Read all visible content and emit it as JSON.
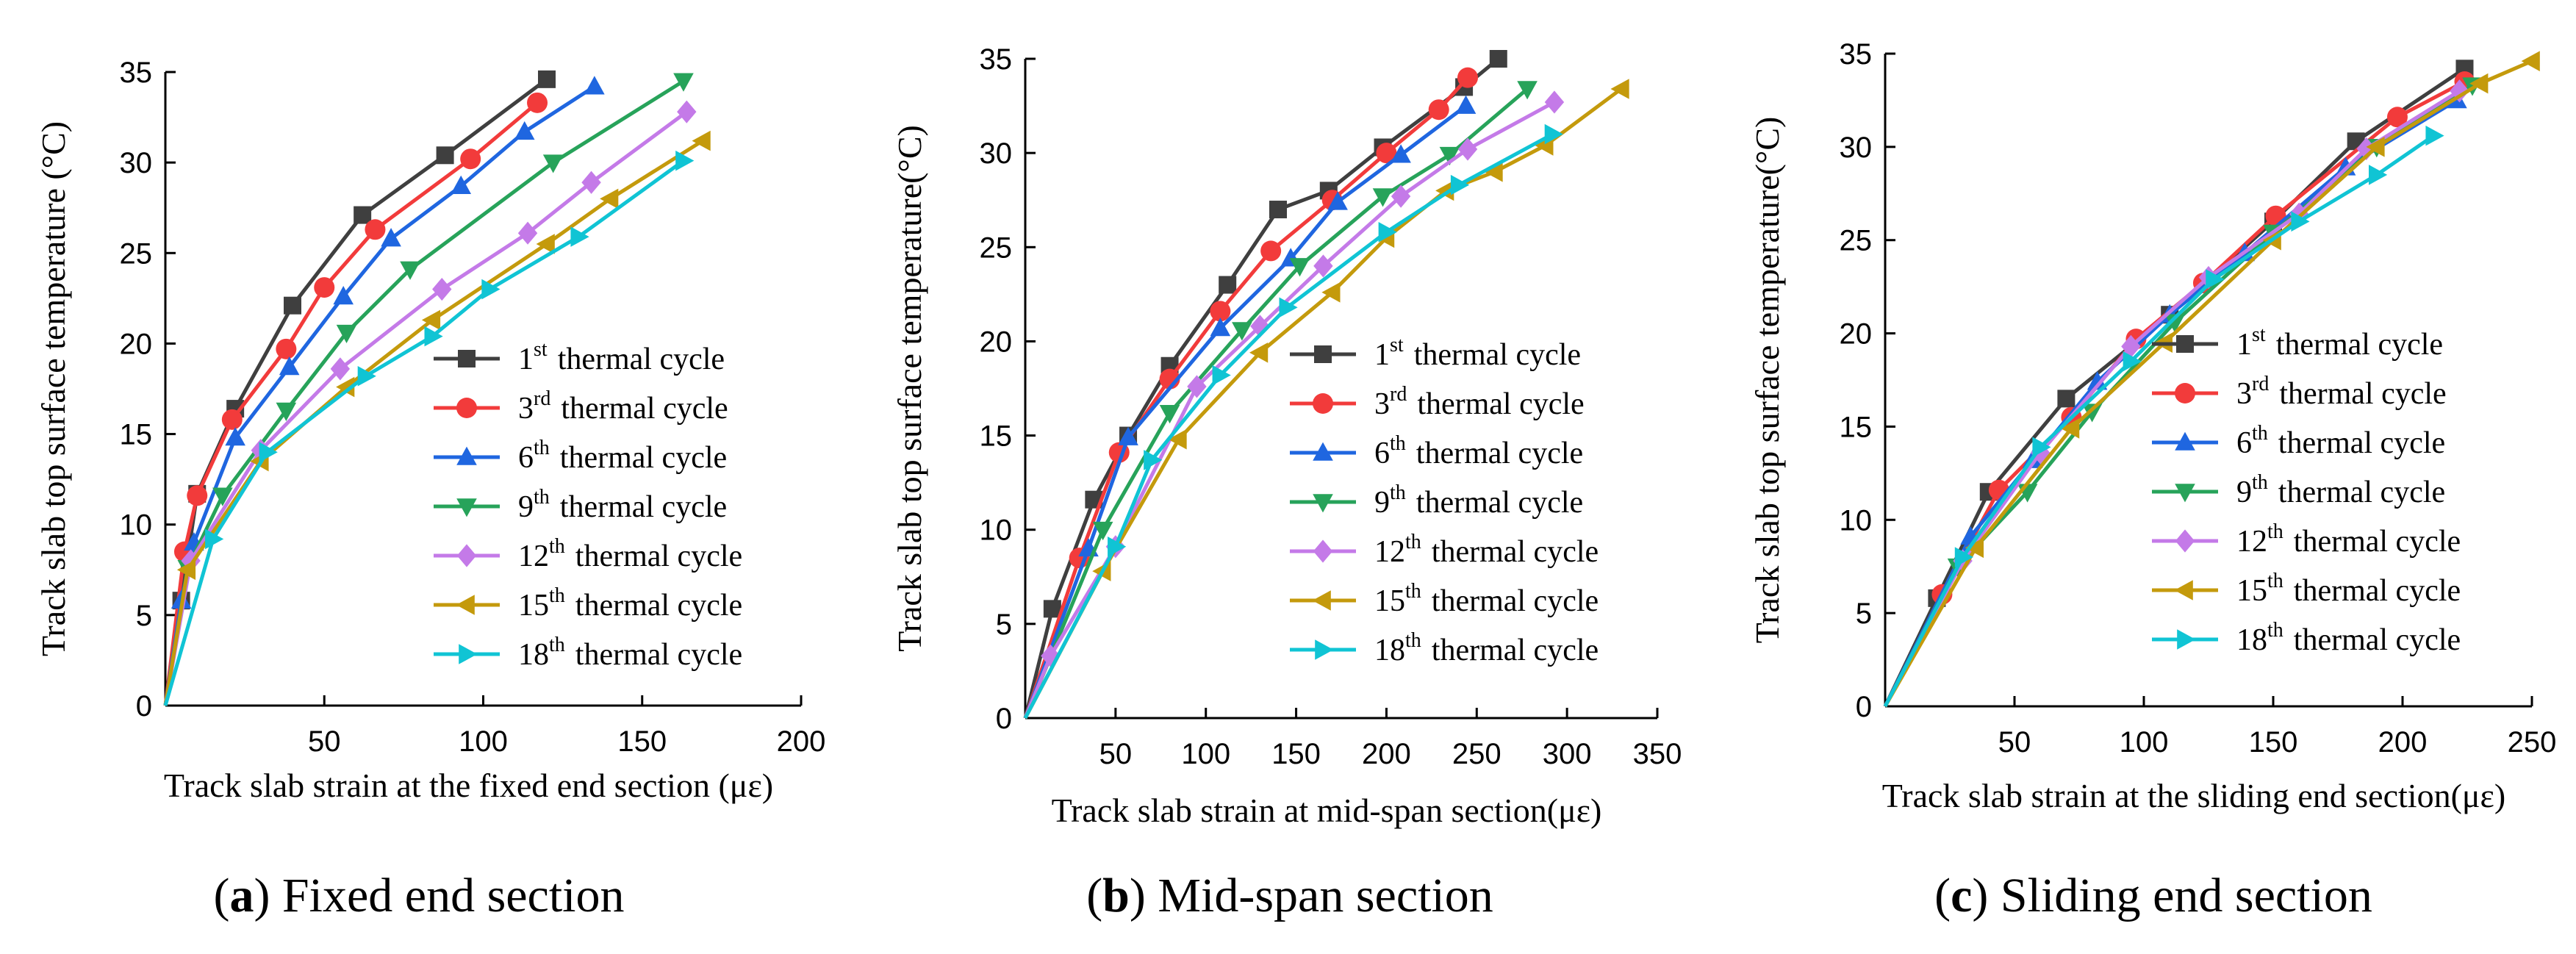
{
  "chart_data": [
    {
      "type": "line",
      "panel_letter": "a",
      "caption": "Fixed end section",
      "xlabel": "Track slab strain at the fixed end section (με)",
      "ylabel": "Track slab top surface temperature (°C)",
      "xlim": [
        0,
        200
      ],
      "ylim": [
        0,
        35
      ],
      "xticks": [
        50,
        100,
        150,
        200
      ],
      "yticks": [
        0,
        5,
        10,
        15,
        20,
        25,
        30,
        35
      ],
      "legend_position": "center-right",
      "series": [
        {
          "name": "1st thermal cycle",
          "x": [
            0,
            5,
            10,
            22,
            40,
            62,
            88,
            120
          ],
          "y": [
            0,
            5.8,
            11.7,
            16.4,
            22.1,
            27.1,
            30.4,
            34.6
          ]
        },
        {
          "name": "3rd thermal cycle",
          "x": [
            0,
            6,
            10,
            21,
            38,
            50,
            66,
            96,
            117
          ],
          "y": [
            0,
            8.5,
            11.6,
            15.8,
            19.7,
            23.1,
            26.3,
            30.2,
            33.3
          ]
        },
        {
          "name": "6th thermal cycle",
          "x": [
            0,
            5,
            9,
            22,
            39,
            56,
            71,
            93,
            113,
            135
          ],
          "y": [
            0,
            5.8,
            9.0,
            14.8,
            18.7,
            22.6,
            25.8,
            28.7,
            31.7,
            34.2
          ]
        },
        {
          "name": "9th thermal cycle",
          "x": [
            0,
            7,
            18,
            38,
            57,
            77,
            122,
            163
          ],
          "y": [
            0,
            7.6,
            11.6,
            16.3,
            20.6,
            24.1,
            30.0,
            34.5
          ]
        },
        {
          "name": "12th thermal cycle",
          "x": [
            0,
            8,
            30,
            55,
            87,
            114,
            134,
            164
          ],
          "y": [
            0,
            8.0,
            14.1,
            18.6,
            23.0,
            26.1,
            28.9,
            32.8
          ]
        },
        {
          "name": "15th thermal cycle",
          "x": [
            0,
            7,
            30,
            57,
            84,
            120,
            140,
            169
          ],
          "y": [
            0,
            7.5,
            13.5,
            17.6,
            21.3,
            25.5,
            28.0,
            31.2
          ]
        },
        {
          "name": "18th thermal cycle",
          "x": [
            0,
            15,
            32,
            63,
            84,
            102,
            130,
            163
          ],
          "y": [
            0,
            9.2,
            14.0,
            18.2,
            20.4,
            23.0,
            25.9,
            30.1
          ]
        }
      ]
    },
    {
      "type": "line",
      "panel_letter": "b",
      "caption": "Mid-span section",
      "xlabel": "Track slab strain at mid-span section(με)",
      "ylabel": "Track slab top surface temperature(°C)",
      "xlim": [
        0,
        350
      ],
      "ylim": [
        0,
        35
      ],
      "xticks": [
        50,
        100,
        150,
        200,
        250,
        300,
        350
      ],
      "yticks": [
        0,
        5,
        10,
        15,
        20,
        25,
        30,
        35
      ],
      "legend_position": "center-right",
      "series": [
        {
          "name": "1st thermal cycle",
          "x": [
            0,
            15,
            38,
            57,
            80,
            112,
            140,
            168,
            198,
            243,
            262
          ],
          "y": [
            0,
            5.8,
            11.6,
            15.0,
            18.7,
            23.0,
            27.0,
            28.0,
            30.3,
            33.5,
            35
          ]
        },
        {
          "name": "3rd thermal cycle",
          "x": [
            0,
            30,
            52,
            80,
            108,
            136,
            170,
            200,
            229,
            245
          ],
          "y": [
            0,
            8.5,
            14.1,
            18.0,
            21.6,
            24.8,
            27.5,
            30.0,
            32.3,
            34
          ]
        },
        {
          "name": "6th thermal cycle",
          "x": [
            0,
            35,
            57,
            108,
            147,
            173,
            208,
            244
          ],
          "y": [
            0,
            9.0,
            14.9,
            20.7,
            24.4,
            27.4,
            29.9,
            32.5
          ]
        },
        {
          "name": "9th thermal cycle",
          "x": [
            0,
            43,
            80,
            120,
            152,
            198,
            235,
            278
          ],
          "y": [
            0,
            10.0,
            16.2,
            20.6,
            24.0,
            27.7,
            29.9,
            33.4
          ]
        },
        {
          "name": "12th thermal cycle",
          "x": [
            0,
            14,
            50,
            95,
            130,
            165,
            208,
            245,
            293
          ],
          "y": [
            0,
            3.3,
            9.1,
            17.6,
            20.8,
            24.0,
            27.7,
            30.2,
            32.7
          ]
        },
        {
          "name": "15th thermal cycle",
          "x": [
            0,
            43,
            85,
            130,
            170,
            200,
            233,
            260,
            288,
            330
          ],
          "y": [
            0,
            7.8,
            14.8,
            19.4,
            22.6,
            25.5,
            28.0,
            29.0,
            30.4,
            33.4
          ]
        },
        {
          "name": "18th thermal cycle",
          "x": [
            0,
            50,
            70,
            108,
            145,
            200,
            240,
            292
          ],
          "y": [
            0,
            9.1,
            13.7,
            18.2,
            21.8,
            25.8,
            28.3,
            31.0
          ]
        }
      ]
    },
    {
      "type": "line",
      "panel_letter": "c",
      "caption": "Sliding end section",
      "xlabel": "Track slab strain at the sliding end section(με)",
      "ylabel": "Track slab top surface temperature(°C)",
      "xlim": [
        0,
        250
      ],
      "ylim": [
        0,
        35
      ],
      "xticks": [
        50,
        100,
        150,
        200,
        250
      ],
      "yticks": [
        0,
        5,
        10,
        15,
        20,
        25,
        30,
        35
      ],
      "legend_position": "center-right",
      "series": [
        {
          "name": "1st thermal cycle",
          "x": [
            0,
            20,
            40,
            70,
            110,
            150,
            182,
            224
          ],
          "y": [
            0,
            5.8,
            11.5,
            16.5,
            21.0,
            26.0,
            30.3,
            34.2
          ]
        },
        {
          "name": "3rd thermal cycle",
          "x": [
            0,
            22,
            44,
            72,
            97,
            123,
            151,
            198,
            224
          ],
          "y": [
            0,
            6.0,
            11.6,
            15.5,
            19.7,
            22.7,
            26.3,
            31.6,
            33.5
          ]
        },
        {
          "name": "6th thermal cycle",
          "x": [
            0,
            33,
            57,
            82,
            110,
            139,
            178,
            221
          ],
          "y": [
            0,
            9.1,
            13.2,
            17.4,
            21.0,
            24.3,
            28.9,
            32.5
          ]
        },
        {
          "name": "9th thermal cycle",
          "x": [
            0,
            28,
            55,
            80,
            112,
            150,
            190,
            227
          ],
          "y": [
            0,
            7.5,
            11.5,
            15.8,
            20.6,
            25.4,
            30.0,
            33.3
          ]
        },
        {
          "name": "12th thermal cycle",
          "x": [
            0,
            30,
            60,
            95,
            125,
            160,
            186,
            222
          ],
          "y": [
            0,
            7.8,
            13.6,
            19.3,
            23.0,
            26.4,
            29.9,
            33.0
          ]
        },
        {
          "name": "15th thermal cycle",
          "x": [
            0,
            35,
            72,
            108,
            150,
            190,
            230,
            250
          ],
          "y": [
            0,
            8.5,
            14.9,
            19.5,
            25.0,
            30.0,
            33.4,
            34.6
          ]
        },
        {
          "name": "18th thermal cycle",
          "x": [
            0,
            30,
            60,
            95,
            127,
            160,
            190,
            212
          ],
          "y": [
            0,
            8.0,
            13.9,
            18.5,
            22.9,
            26.0,
            28.5,
            30.6
          ]
        }
      ]
    }
  ],
  "legend_entries": [
    {
      "num": "1",
      "sup": "st",
      "rest": "thermal cycle",
      "color": "#3f3f3f",
      "marker": "square"
    },
    {
      "num": "3",
      "sup": "rd",
      "rest": "thermal cycle",
      "color": "#f23b3b",
      "marker": "circle"
    },
    {
      "num": "6",
      "sup": "th",
      "rest": "thermal cycle",
      "color": "#1f66e0",
      "marker": "triangle-up"
    },
    {
      "num": "9",
      "sup": "th",
      "rest": "thermal cycle",
      "color": "#27a35a",
      "marker": "triangle-down"
    },
    {
      "num": "12",
      "sup": "th",
      "rest": "thermal cycle",
      "color": "#c47ae8",
      "marker": "diamond"
    },
    {
      "num": "15",
      "sup": "th",
      "rest": "thermal cycle",
      "color": "#c49a0c",
      "marker": "triangle-left"
    },
    {
      "num": "18",
      "sup": "th",
      "rest": "thermal cycle",
      "color": "#10c4d4",
      "marker": "triangle-right"
    }
  ]
}
